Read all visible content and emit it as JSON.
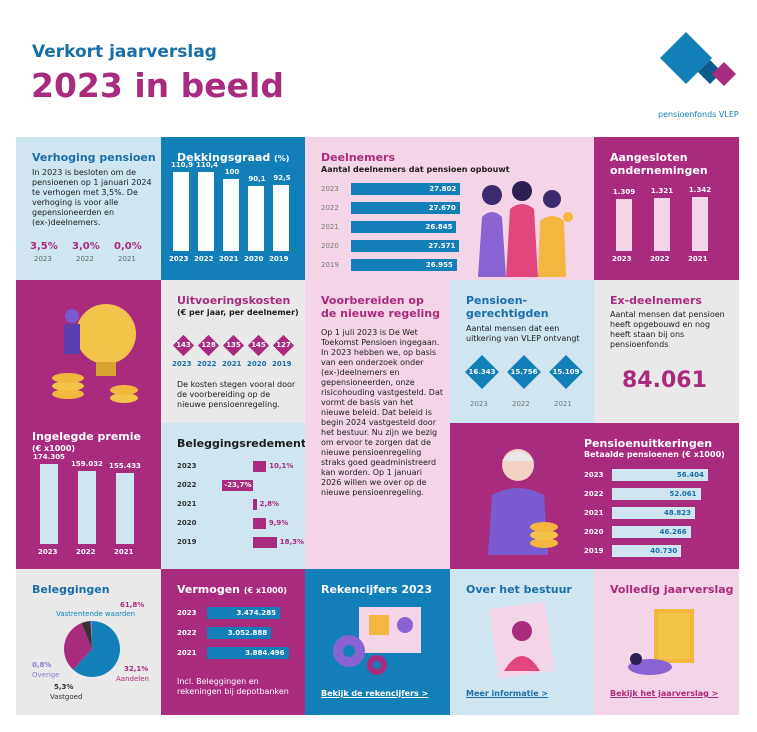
{
  "header": {
    "subtitle": "Verkort jaarverslag",
    "title": "2023 in beeld",
    "logo_text": "pensioenfonds VLEP"
  },
  "verhoging": {
    "title": "Verhoging pensioen",
    "text": "In 2023 is besloten om de pensioenen op 1 januari 2024 te verhogen met 3,5%. De verhoging is voor alle gepensioneerden en (ex-)deelnemers.",
    "items": [
      {
        "value": "3,5%",
        "year": "2023"
      },
      {
        "value": "3,0%",
        "year": "2022"
      },
      {
        "value": "0,0%",
        "year": "2021"
      }
    ]
  },
  "dekkingsgraad": {
    "title": "Dekkingsgraad",
    "unit": "(%)",
    "years": [
      "2023",
      "2022",
      "2021",
      "2020",
      "2019"
    ],
    "values": [
      110.9,
      110.4,
      100,
      90.1,
      92.5
    ],
    "labels": [
      "110,9",
      "110,4",
      "100",
      "90,1",
      "92,5"
    ]
  },
  "deelnemers": {
    "title": "Deelnemers",
    "subtitle": "Aantal deelnemers dat pensioen opbouwt",
    "years": [
      "2023",
      "2022",
      "2021",
      "2020",
      "2019"
    ],
    "values": [
      27802,
      27670,
      26845,
      27571,
      26955
    ],
    "labels": [
      "27.802",
      "27.670",
      "26.845",
      "27.571",
      "26.955"
    ]
  },
  "aangesloten": {
    "title": "Aangesloten ondernemingen",
    "years": [
      "2023",
      "2022",
      "2021"
    ],
    "values": [
      1309,
      1321,
      1342
    ],
    "labels": [
      "1.309",
      "1.321",
      "1.342"
    ]
  },
  "uitvoering": {
    "title": "Uitvoeringskosten",
    "subtitle": "(€ per jaar, per deelnemer)",
    "years": [
      "2023",
      "2022",
      "2021",
      "2020",
      "2019"
    ],
    "labels": [
      "143",
      "128",
      "135",
      "145",
      "127"
    ],
    "text": "De kosten stegen vooral door de voorbereiding op de nieuwe pensioenregeling."
  },
  "voorbereiden": {
    "title": "Voorbereiden op de nieuwe regeling",
    "text": "Op 1 juli 2023 is De Wet Toekomst Pensioen ingegaan. In 2023 hebben we, op basis van een onderzoek onder (ex-)deelnemers en gepensioneerden, onze risicohouding vastgesteld. Dat vormt de basis van het nieuwe beleid. Dat beleid is begin 2024 vastgesteld door het bestuur. Nu zijn we bezig om ervoor te zorgen dat de nieuwe pensioenregeling straks goed geadministreerd kan worden. Op 1 januari 2026 willen we over op de nieuwe pensioenregeling."
  },
  "gerechtigden": {
    "title": "Pensioen-gerechtigden",
    "text": "Aantal mensen dat een uitkering van VLEP ontvangt",
    "years": [
      "2023",
      "2022",
      "2021"
    ],
    "labels": [
      "16.343",
      "15.756",
      "15.109"
    ]
  },
  "exdeelnemers": {
    "title": "Ex-deelnemers",
    "text": "Aantal mensen dat pensioen heeft opgebouwd en nog heeft staan bij ons pensioenfonds",
    "value": "84.061"
  },
  "premie": {
    "title": "Ingelegde premie",
    "unit": "(€ x1000)",
    "years": [
      "2023",
      "2022",
      "2021"
    ],
    "values": [
      174305,
      159032,
      155433
    ],
    "labels": [
      "174.305",
      "159.032",
      "155.433"
    ]
  },
  "rendement": {
    "title": "Beleggingsredement",
    "years": [
      "2023",
      "2022",
      "2021",
      "2020",
      "2019"
    ],
    "values": [
      10.1,
      -23.7,
      2.8,
      9.9,
      18.3
    ],
    "labels": [
      "10,1%",
      "-23,7%",
      "2,8%",
      "9,9%",
      "18,3%"
    ]
  },
  "uitkeringen": {
    "title": "Pensioenuitkeringen",
    "subtitle": "Betaalde pensioenen (€ x1000)",
    "years": [
      "2023",
      "2022",
      "2021",
      "2020",
      "2019"
    ],
    "values": [
      56404,
      52061,
      48823,
      46266,
      40730
    ],
    "labels": [
      "56.404",
      "52.061",
      "48.823",
      "46.266",
      "40.730"
    ]
  },
  "beleggingen": {
    "title": "Beleggingen",
    "slices": [
      {
        "name": "Vastrentende waarden",
        "value": 61.8,
        "label": "61,8%",
        "color": "#137fb9"
      },
      {
        "name": "Aandelen",
        "value": 32.1,
        "label": "32,1%",
        "color": "#a92b7e"
      },
      {
        "name": "Vastgoed",
        "value": 5.3,
        "label": "5,3%",
        "color": "#333333"
      },
      {
        "name": "Overige",
        "value": 0.8,
        "label": "0,8%",
        "color": "#8a7bd1"
      }
    ]
  },
  "vermogen": {
    "title": "Vermogen",
    "unit": "(€ x1000)",
    "years": [
      "2023",
      "2022",
      "2021"
    ],
    "values": [
      3474285,
      3052888,
      3884496
    ],
    "labels": [
      "3.474.285",
      "3.052.888",
      "3.884.496"
    ],
    "note": "Incl. Beleggingen en rekeningen bij depotbanken"
  },
  "rekencijfers": {
    "title": "Rekencijfers 2023",
    "link": "Bekijk de rekencijfers >"
  },
  "bestuur": {
    "title": "Over het bestuur",
    "link": "Meer informatie >"
  },
  "jaarverslag": {
    "title": "Volledig jaarverslag",
    "link": "Bekijk het jaarverslag >"
  },
  "colors": {
    "blue": "#137fb9",
    "magenta": "#a92b7e",
    "lightblue": "#cfe6f1",
    "pink": "#f4d5e7",
    "grey": "#e9e9e9"
  }
}
